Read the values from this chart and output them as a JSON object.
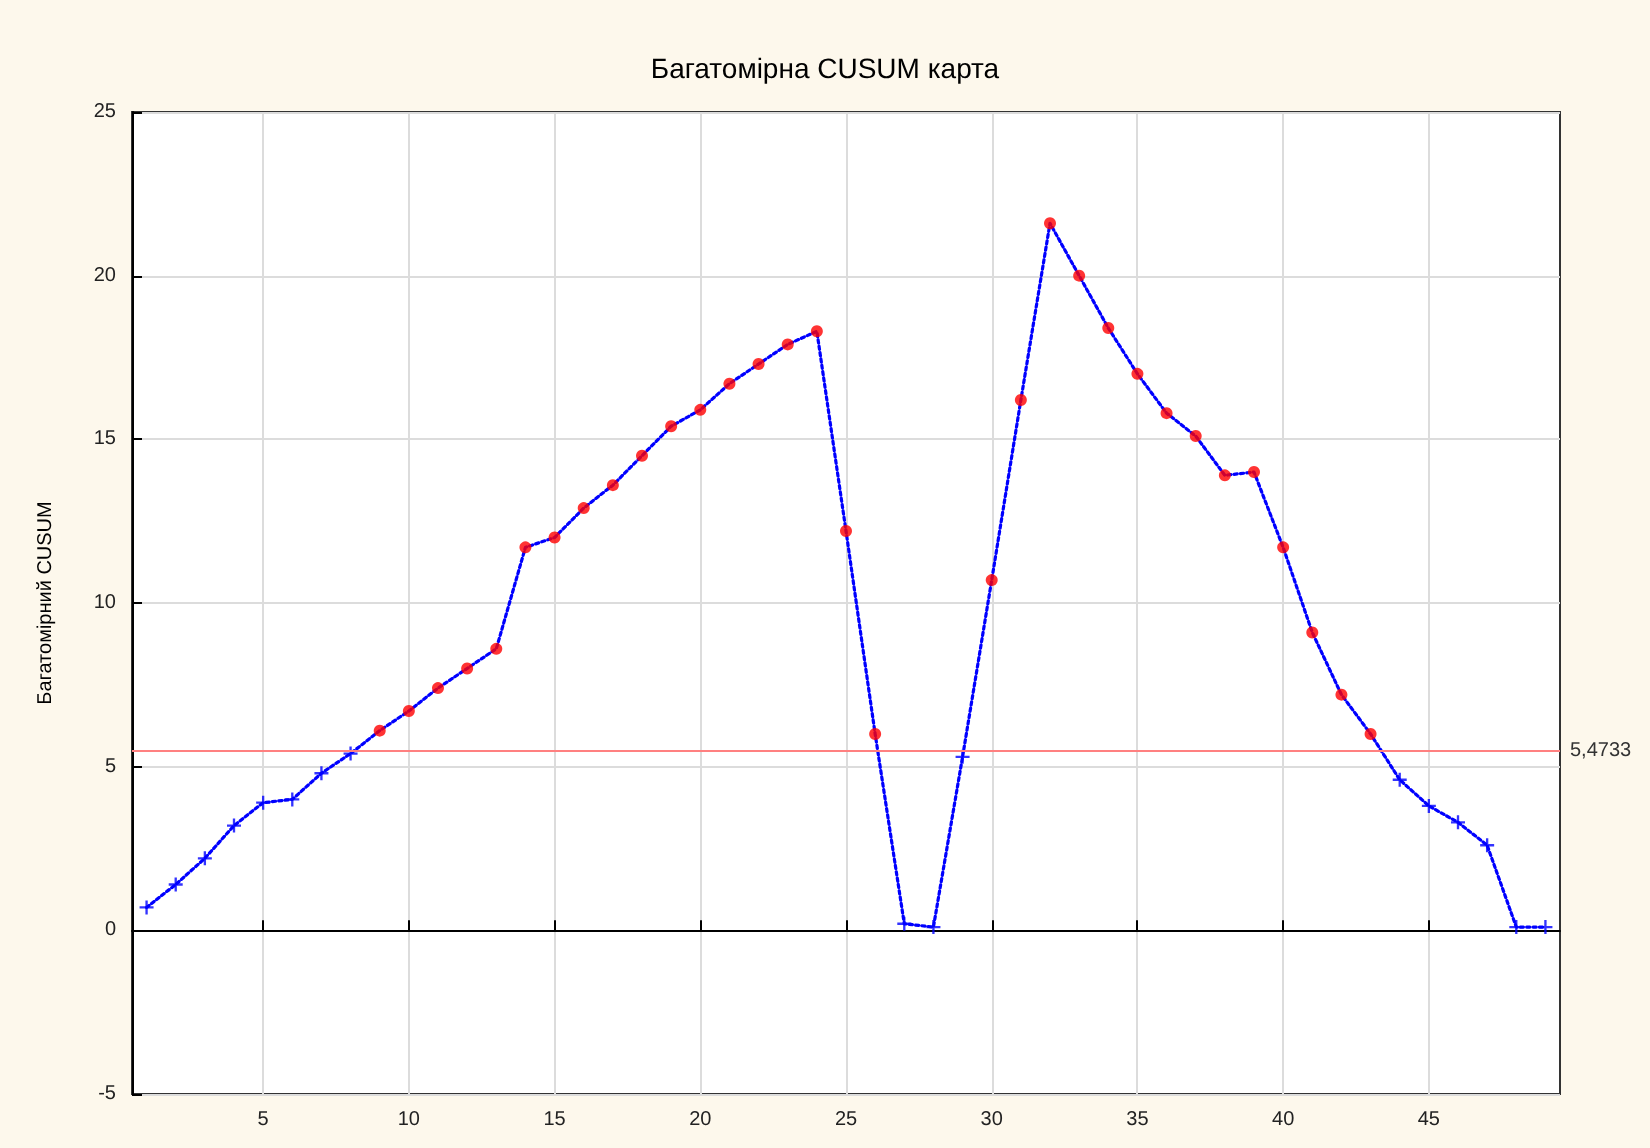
{
  "chart_data": {
    "type": "line",
    "title": "Багатомірна CUSUM карта",
    "ylabel": "Багатомірний CUSUM",
    "x": [
      1,
      2,
      3,
      4,
      5,
      6,
      7,
      8,
      9,
      10,
      11,
      12,
      13,
      14,
      15,
      16,
      17,
      18,
      19,
      20,
      21,
      22,
      23,
      24,
      25,
      26,
      27,
      28,
      29,
      30,
      31,
      32,
      33,
      34,
      35,
      36,
      37,
      38,
      39,
      40,
      41,
      42,
      43,
      44,
      45,
      46,
      47,
      48,
      49
    ],
    "series": [
      {
        "color": "#0000ff",
        "marker": "none",
        "line_style": "dotted",
        "values": [
          0.7,
          1.4,
          2.2,
          3.2,
          3.9,
          4.0,
          4.8,
          5.4,
          6.1,
          6.7,
          7.4,
          8.0,
          8.6,
          11.7,
          12.0,
          12.9,
          13.6,
          14.5,
          15.4,
          15.9,
          16.7,
          17.3,
          17.9,
          18.3,
          12.2,
          6.0,
          0.2,
          0.1,
          5.3,
          10.7,
          16.2,
          21.6,
          20.0,
          18.4,
          17.0,
          15.8,
          15.1,
          13.9,
          14.0,
          11.7,
          9.1,
          7.2,
          6.0,
          4.6,
          3.8,
          3.3,
          2.6,
          0.1,
          0.1
        ]
      },
      {
        "type": "scatter",
        "color": "#0000ff",
        "marker": "cross",
        "values": [
          0.7,
          1.4,
          2.2,
          3.2,
          3.9,
          4.0,
          4.8,
          5.4,
          null,
          null,
          null,
          null,
          null,
          null,
          null,
          null,
          null,
          null,
          null,
          null,
          null,
          null,
          null,
          null,
          null,
          null,
          0.2,
          0.1,
          5.3,
          null,
          null,
          null,
          null,
          null,
          null,
          null,
          null,
          null,
          null,
          null,
          null,
          null,
          null,
          4.6,
          3.8,
          3.3,
          2.6,
          0.1,
          0.1
        ]
      },
      {
        "type": "scatter",
        "color": "#ff0000",
        "marker": "circle",
        "values": [
          null,
          null,
          null,
          null,
          null,
          null,
          null,
          null,
          6.1,
          6.7,
          7.4,
          8.0,
          8.6,
          11.7,
          12.0,
          12.9,
          13.6,
          14.5,
          15.4,
          15.9,
          16.7,
          17.3,
          17.9,
          18.3,
          12.2,
          6.0,
          null,
          null,
          null,
          10.7,
          16.2,
          21.6,
          20.0,
          18.4,
          17.0,
          15.8,
          15.1,
          13.9,
          14.0,
          11.7,
          9.1,
          7.2,
          6.0,
          null,
          null,
          null,
          null,
          null,
          null
        ]
      }
    ],
    "xlim": [
      0.5,
      49.5
    ],
    "xticks": [
      5,
      10,
      15,
      20,
      25,
      30,
      35,
      40,
      45
    ],
    "ylim": [
      -5,
      25
    ],
    "yticks": [
      -5,
      0,
      5,
      10,
      15,
      20,
      25
    ],
    "ref_lines": [
      {
        "axis": "y",
        "value": 5.4733,
        "label": "5,4733",
        "color": "#ff8080"
      }
    ],
    "grid": true
  }
}
